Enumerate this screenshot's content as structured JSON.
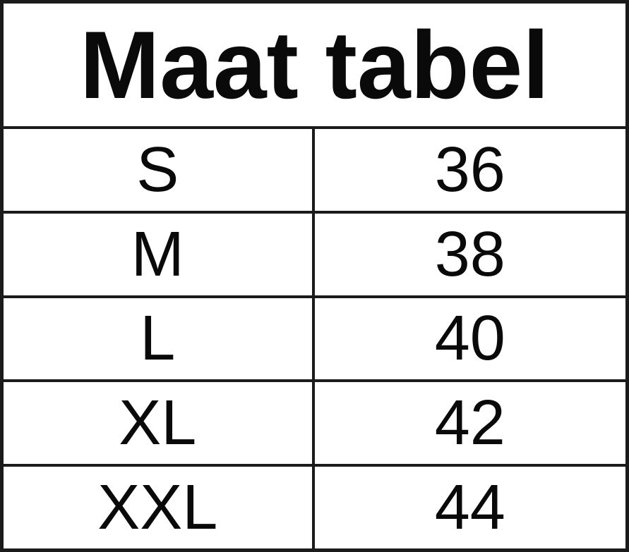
{
  "table": {
    "title": "Maat tabel",
    "rows": [
      {
        "size": "S",
        "value": "36"
      },
      {
        "size": "M",
        "value": "38"
      },
      {
        "size": "L",
        "value": "40"
      },
      {
        "size": "XL",
        "value": "42"
      },
      {
        "size": "XXL",
        "value": "44"
      }
    ]
  },
  "chart_data": {
    "type": "table",
    "title": "Maat tabel",
    "columns": [
      "size",
      "measurement"
    ],
    "categories": [
      "S",
      "M",
      "L",
      "XL",
      "XXL"
    ],
    "values": [
      36,
      38,
      40,
      42,
      44
    ]
  },
  "colors": {
    "border": "#1b1b1b",
    "background": "#ffffff",
    "text": "#0a0a0a"
  }
}
